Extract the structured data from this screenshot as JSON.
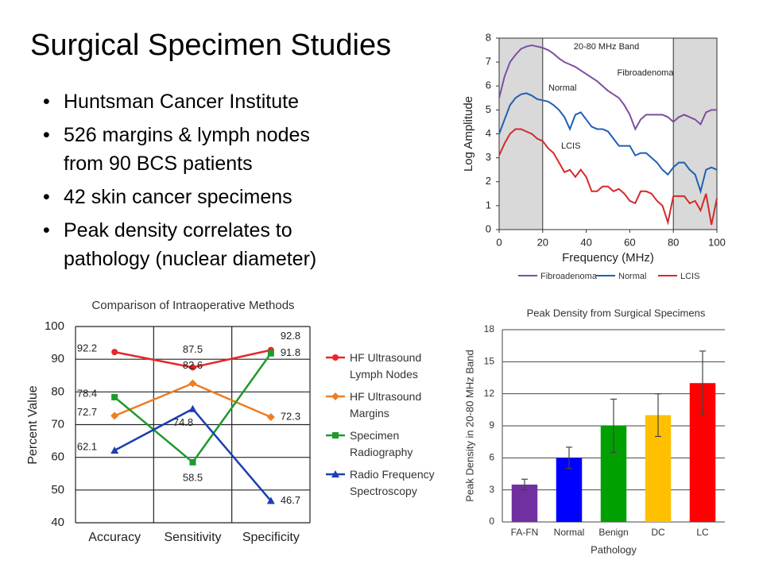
{
  "title": "Surgical Specimen Studies",
  "bullets": [
    {
      "lines": [
        "Huntsman Cancer Institute"
      ]
    },
    {
      "lines": [
        "526 margins & lymph nodes",
        "from 90 BCS patients"
      ]
    },
    {
      "lines": [
        "42 skin cancer specimens"
      ]
    },
    {
      "lines": [
        "Peak density correlates to",
        "pathology (nuclear diameter)"
      ]
    }
  ],
  "chart_data": [
    {
      "type": "line",
      "x_label": "Frequency (MHz)",
      "y_label": "Log Amplitude",
      "annotations": [
        "20-80 MHz Band",
        "Fibroadenoma",
        "Normal",
        "LCIS"
      ],
      "shaded": [
        [
          0,
          20
        ],
        [
          80,
          100
        ]
      ],
      "x": [
        0,
        2.5,
        5,
        7.5,
        10,
        12.5,
        15,
        17.5,
        20,
        22.5,
        25,
        27.5,
        30,
        32.5,
        35,
        37.5,
        40,
        42.5,
        45,
        47.5,
        50,
        52.5,
        55,
        57.5,
        60,
        62.5,
        65,
        67.5,
        70,
        72.5,
        75,
        77.5,
        80,
        82.5,
        85,
        87.5,
        90,
        92.5,
        95,
        97.5,
        100
      ],
      "series": [
        {
          "name": "Fibroadenoma",
          "color": "#7b4fa0",
          "values": [
            5.5,
            6.4,
            7.0,
            7.3,
            7.55,
            7.65,
            7.7,
            7.65,
            7.6,
            7.5,
            7.35,
            7.15,
            7.0,
            6.9,
            6.8,
            6.65,
            6.5,
            6.35,
            6.2,
            6.0,
            5.8,
            5.65,
            5.5,
            5.2,
            4.8,
            4.2,
            4.6,
            4.8,
            4.8,
            4.8,
            4.8,
            4.7,
            4.5,
            4.7,
            4.8,
            4.7,
            4.6,
            4.4,
            4.9,
            5.0,
            5.0
          ]
        },
        {
          "name": "Normal",
          "color": "#1f5fb4",
          "values": [
            4.0,
            4.6,
            5.2,
            5.5,
            5.65,
            5.7,
            5.6,
            5.45,
            5.4,
            5.35,
            5.2,
            5.0,
            4.7,
            4.2,
            4.8,
            4.9,
            4.6,
            4.3,
            4.2,
            4.2,
            4.1,
            3.8,
            3.5,
            3.5,
            3.5,
            3.1,
            3.2,
            3.2,
            3.0,
            2.8,
            2.5,
            2.3,
            2.6,
            2.8,
            2.8,
            2.5,
            2.3,
            1.6,
            2.5,
            2.6,
            2.5
          ]
        },
        {
          "name": "LCIS",
          "color": "#d42a2a",
          "values": [
            3.1,
            3.6,
            4.0,
            4.2,
            4.2,
            4.1,
            4.0,
            3.8,
            3.7,
            3.4,
            3.2,
            2.8,
            2.4,
            2.5,
            2.2,
            2.5,
            2.2,
            1.6,
            1.6,
            1.8,
            1.8,
            1.6,
            1.7,
            1.5,
            1.2,
            1.1,
            1.6,
            1.6,
            1.5,
            1.2,
            1.0,
            0.3,
            1.4,
            1.4,
            1.4,
            1.1,
            1.2,
            0.8,
            1.5,
            0.2,
            1.3
          ]
        }
      ],
      "xlim": [
        0,
        100
      ],
      "xticks": [
        0,
        20,
        40,
        60,
        80,
        100
      ],
      "ylim": [
        0,
        8
      ],
      "yticks": [
        0,
        1,
        2,
        3,
        4,
        5,
        6,
        7,
        8
      ]
    },
    {
      "type": "line",
      "title": "Comparison of Intraoperative Methods",
      "y_label": "Percent Value",
      "categories": [
        "Accuracy",
        "Sensitivity",
        "Specificity"
      ],
      "series": [
        {
          "name": "HF Ultrasound Lymph Nodes",
          "color": "#e8262a",
          "values": [
            92.2,
            87.5,
            92.8
          ]
        },
        {
          "name": "HF Ultrasound Margins",
          "color": "#ef7d22",
          "values": [
            72.7,
            82.6,
            72.3
          ]
        },
        {
          "name": "Specimen Radiography",
          "color": "#1f9a2e",
          "values": [
            78.4,
            58.5,
            91.8
          ]
        },
        {
          "name": "Radio Frequency Spectroscopy",
          "color": "#1c3fb0",
          "values": [
            62.1,
            74.8,
            46.7
          ]
        }
      ],
      "ylim": [
        40,
        100
      ],
      "yticks": [
        40,
        50,
        60,
        70,
        80,
        90,
        100
      ],
      "grid": true
    },
    {
      "type": "bar",
      "title": "Peak Density from Surgical Specimens",
      "x_label": "Pathology",
      "y_label": "Peak Density in 20-80 MHz Band",
      "categories": [
        "FA-FN",
        "Normal",
        "Benign",
        "DC",
        "LC"
      ],
      "values": [
        3.5,
        6,
        9,
        10,
        13
      ],
      "errors": [
        0.5,
        1,
        2.5,
        2,
        3
      ],
      "colors": [
        "#7030a0",
        "#0000ff",
        "#00a000",
        "#ffc000",
        "#ff0000"
      ],
      "ylim": [
        0,
        18
      ],
      "yticks": [
        0,
        3,
        6,
        9,
        12,
        15,
        18
      ],
      "grid": true
    }
  ]
}
